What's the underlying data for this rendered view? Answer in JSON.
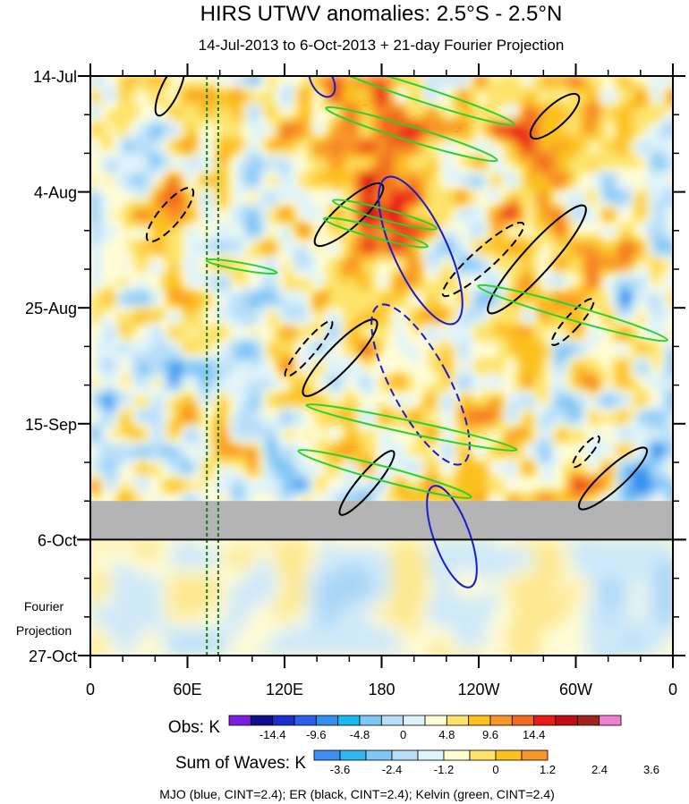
{
  "chart_data": {
    "type": "heatmap",
    "title": "HIRS UTWV anomalies: 2.5°S - 2.5°N",
    "subtitle": "14-Jul-2013 to 6-Oct-2013 + 21-day Fourier Projection",
    "x_axis": {
      "labels": [
        "0",
        "60E",
        "120E",
        "180",
        "120W",
        "60W",
        "0"
      ],
      "values_deg_east": [
        0,
        60,
        120,
        180,
        240,
        300,
        360
      ],
      "range_deg_east": [
        0,
        360
      ]
    },
    "y_axis": {
      "labels": [
        "14-Jul",
        "4-Aug",
        "25-Aug",
        "15-Sep",
        "6-Oct",
        "27-Oct"
      ],
      "day_offsets": [
        0,
        21,
        42,
        63,
        84,
        105
      ],
      "range_days": [
        0,
        105
      ]
    },
    "missing_band_days": [
      77,
      84
    ],
    "observation_end_day": 84,
    "projection_label": [
      "Fourier",
      "Projection"
    ],
    "reference_lines_deg_east": [
      72,
      79
    ],
    "colorbars": [
      {
        "title": "Obs: K",
        "levels": [
          "-14.4",
          "-9.6",
          "-4.8",
          "0",
          "4.8",
          "9.6",
          "14.4"
        ],
        "colors": [
          "#7a1ee0",
          "#0e0e8f",
          "#1b2fcf",
          "#2c5fe8",
          "#3090f0",
          "#18b8f0",
          "#7fc6f5",
          "#b9def8",
          "#def3fb",
          "#fffdd6",
          "#fde36a",
          "#fcc11c",
          "#f8962a",
          "#f26a1e",
          "#ea1a1a",
          "#c20c14",
          "#a2231e",
          "#f07fd2"
        ]
      },
      {
        "title": "Sum of Waves: K",
        "levels": [
          "-3.6",
          "-2.4",
          "-1.2",
          "0",
          "1.2",
          "2.4",
          "3.6"
        ],
        "colors": [
          "#3c8ff0",
          "#32b6f0",
          "#7ec6f4",
          "#b6dcf6",
          "#def3fb",
          "#fffdd2",
          "#fde36a",
          "#fcc11c",
          "#f8962a"
        ]
      }
    ],
    "contour_legend": "MJO (blue, CINT=2.4); ER (black, CINT=2.4); Kelvin (green, CINT=2.4)"
  }
}
